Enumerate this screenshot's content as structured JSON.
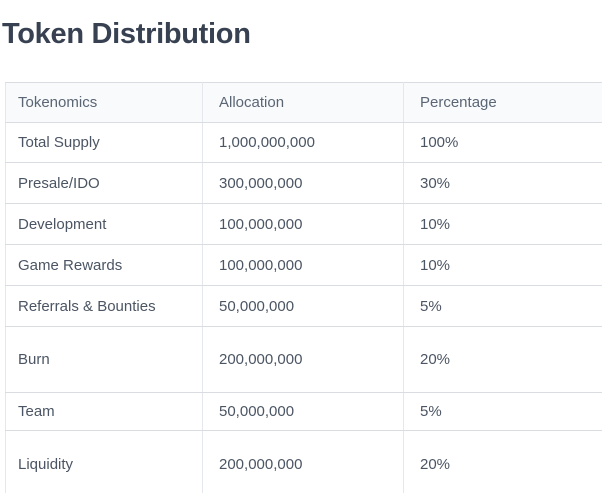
{
  "title": "Token Distribution",
  "table": {
    "columns": [
      "Tokenomics",
      "Allocation",
      "Percentage"
    ],
    "rows": [
      {
        "tokenomics": "Total Supply",
        "allocation": "1,000,000,000",
        "percentage": "100%"
      },
      {
        "tokenomics": "Presale/IDO",
        "allocation": "300,000,000",
        "percentage": "30%"
      },
      {
        "tokenomics": "Development",
        "allocation": "100,000,000",
        "percentage": "10%"
      },
      {
        "tokenomics": "Game Rewards",
        "allocation": "100,000,000",
        "percentage": "10%"
      },
      {
        "tokenomics": "Referrals & Bounties",
        "allocation": "50,000,000",
        "percentage": "5%"
      },
      {
        "tokenomics": "Burn",
        "allocation": "200,000,000",
        "percentage": "20%"
      },
      {
        "tokenomics": "Team",
        "allocation": "50,000,000",
        "percentage": "5%"
      },
      {
        "tokenomics": "Liquidity",
        "allocation": "200,000,000",
        "percentage": "20%"
      }
    ]
  },
  "colors": {
    "title_text": "#374151",
    "header_background": "#f8fafc",
    "header_text": "#5b6674",
    "body_text": "#4b5563",
    "row_border": "#d9dde2",
    "column_border": "#e4e7eb",
    "page_background": "#ffffff"
  }
}
